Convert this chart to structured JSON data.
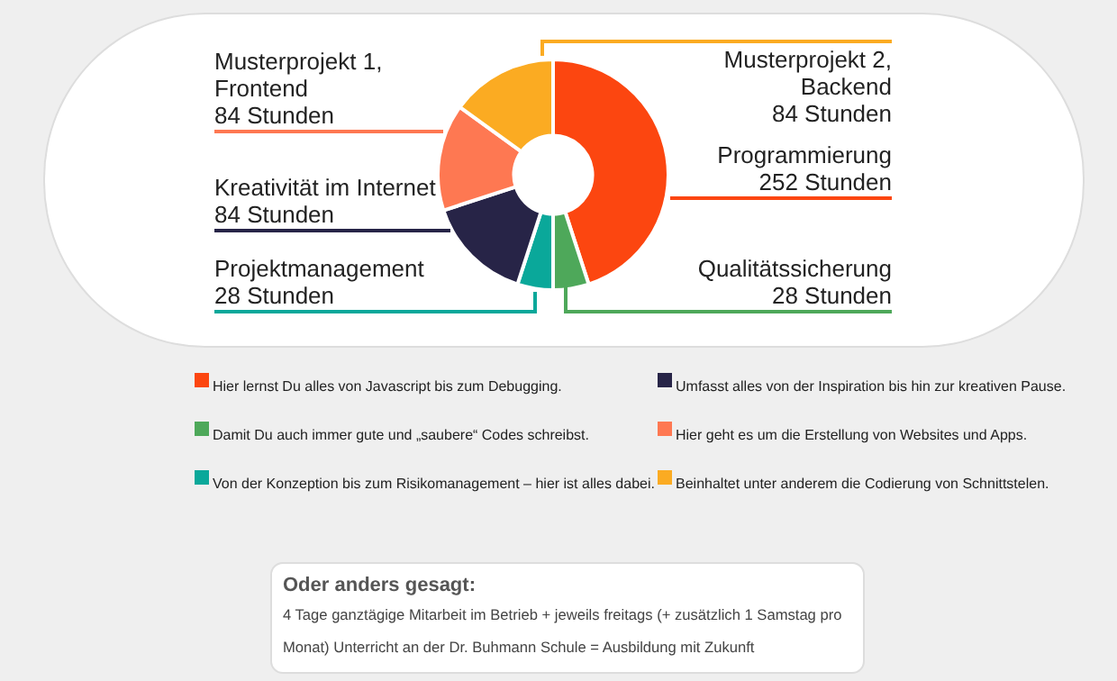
{
  "chart_data": {
    "type": "donut",
    "categories": [
      "Programmierung",
      "Qualitätssicherung",
      "Projektmanagement",
      "Kreativität im Internet",
      "Musterprojekt 1,\nFrontend",
      "Musterprojekt 2,\nBackend"
    ],
    "values": [
      252,
      28,
      28,
      84,
      84,
      84
    ],
    "value_labels": [
      "252 Stunden",
      "28 Stunden",
      "28 Stunden",
      "84 Stunden",
      "84 Stunden",
      "84 Stunden"
    ],
    "colors": [
      "#fc4610",
      "#4ea85a",
      "#0aa89a",
      "#272447",
      "#fe7852",
      "#fbab22"
    ],
    "legend": false,
    "annotations": [
      "Hier lernst Du alles von Javascript bis zum Debugging.",
      "Damit Du auch immer gute und „saubere“ Codes schreibst.",
      "Von der Konzeption bis zum Risikomanagement – hier ist alles dabei.",
      "Umfasst alles von der Inspiration bis hin zur kreativen Pause.",
      "Hier geht es um die Erstellung von Websites und Apps.",
      "Beinhaltet unter anderem die Codierung von Schnittstelen.",
      "Oder anders gesagt:",
      "4 Tage ganztägige Mitarbeit im Betrieb + jeweils freitags (+ zusätzlich 1 Samstag pro Monat) Unterricht an der Dr. Buhmann Schule = Ausbildung mit Zukunft"
    ]
  }
}
